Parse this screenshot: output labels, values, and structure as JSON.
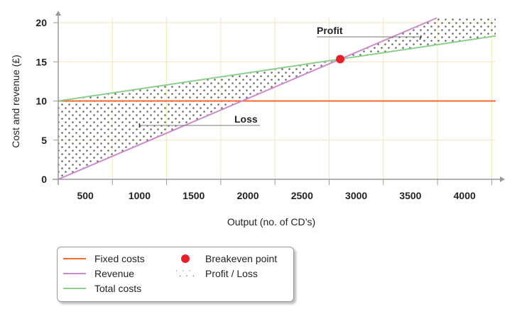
{
  "chart_data": {
    "type": "line",
    "xlabel": "Output (no. of CD’s)",
    "ylabel": "Cost and revenue (£)",
    "x_tick_labels": [
      "500",
      "1000",
      "1500",
      "2000",
      "2500",
      "3000",
      "3500",
      "4000"
    ],
    "y_ticks": [
      0,
      5,
      10,
      15,
      20
    ],
    "ylim": [
      0,
      20.6
    ],
    "xlim": [
      250,
      4287
    ],
    "grid": true,
    "series": [
      {
        "name": "Fixed costs",
        "color": "#f26a2e",
        "x": [
          250,
          4287
        ],
        "y": [
          10,
          10
        ]
      },
      {
        "name": "Revenue",
        "color": "#c98bc9",
        "x": [
          250,
          3743
        ],
        "y": [
          0,
          20.6
        ]
      },
      {
        "name": "Total costs",
        "color": "#8ccf8c",
        "x": [
          250,
          4287
        ],
        "y": [
          10,
          18.3
        ]
      }
    ],
    "breakeven": {
      "name": "Breakeven point",
      "x": 2852,
      "y": 15.35,
      "color": "#e8202a"
    },
    "regions": {
      "name": "Profit / Loss",
      "loss": [
        [
          250,
          10
        ],
        [
          2852,
          15.35
        ],
        [
          250,
          0
        ]
      ],
      "profit": [
        [
          2852,
          15.35
        ],
        [
          3743,
          20.6
        ],
        [
          4287,
          20.6
        ],
        [
          4287,
          18.3
        ]
      ]
    },
    "annotations": [
      {
        "text": "Profit",
        "target": [
          3600,
          18.2
        ]
      },
      {
        "text": "Loss",
        "target": [
          1000,
          6.8
        ]
      }
    ]
  },
  "legend": {
    "fixed": "Fixed costs",
    "revenue": "Revenue",
    "total": "Total costs",
    "breakeven": "Breakeven point",
    "profit_loss": "Profit / Loss",
    "dots_glyph": "˙.˙.˙."
  }
}
